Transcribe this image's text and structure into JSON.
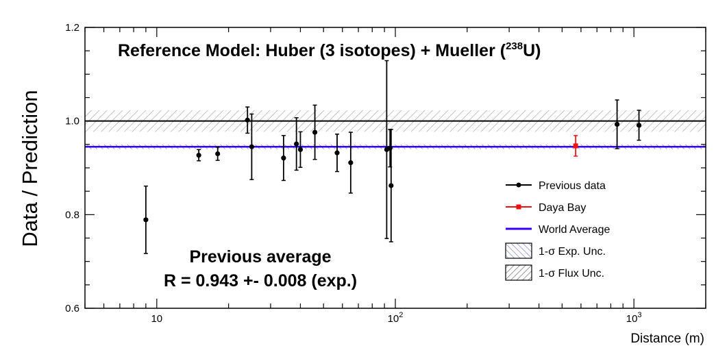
{
  "chart_data": {
    "type": "scatter",
    "title": "Reference Model: Huber (3 isotopes) + Mueller (",
    "title_superscript": "238",
    "title_suffix": "U)",
    "xlabel": "Distance (m)",
    "ylabel": "Data / Prediction",
    "x_scale": "log",
    "xlim": [
      5,
      2000
    ],
    "ylim": [
      0.6,
      1.2
    ],
    "y_ticks": [
      "0.6",
      "0.8",
      "1.0",
      "1.2"
    ],
    "x_ticks": [
      {
        "value": 10,
        "base": "10",
        "exp": ""
      },
      {
        "value": 100,
        "base": "10",
        "exp": "2"
      },
      {
        "value": 1000,
        "base": "10",
        "exp": "3"
      }
    ],
    "grid": false,
    "legend_position": "bottom-right",
    "reference_line": {
      "y": 1.0,
      "color": "#000000"
    },
    "world_average": {
      "y": 0.945,
      "color": "#3300ff"
    },
    "flux_band": {
      "ymin": 0.977,
      "ymax": 1.023
    },
    "exp_band": {
      "ymin": 0.94,
      "ymax": 0.95
    },
    "series": [
      {
        "name": "Previous data",
        "color": "#000000",
        "points": [
          {
            "x": 9,
            "y": 0.789,
            "err": 0.072
          },
          {
            "x": 15,
            "y": 0.927,
            "err": 0.012
          },
          {
            "x": 18,
            "y": 0.93,
            "err": 0.014
          },
          {
            "x": 24,
            "y": 1.002,
            "err": 0.028
          },
          {
            "x": 25,
            "y": 0.945,
            "err": 0.07
          },
          {
            "x": 34,
            "y": 0.921,
            "err": 0.048
          },
          {
            "x": 38.5,
            "y": 0.951,
            "err": 0.056
          },
          {
            "x": 40,
            "y": 0.939,
            "err": 0.038
          },
          {
            "x": 46,
            "y": 0.976,
            "err": 0.058
          },
          {
            "x": 57,
            "y": 0.932,
            "err": 0.04
          },
          {
            "x": 65,
            "y": 0.911,
            "err": 0.065
          },
          {
            "x": 92,
            "y": 0.939,
            "err": 0.19
          },
          {
            "x": 95,
            "y": 0.942,
            "err": 0.04
          },
          {
            "x": 96,
            "y": 0.862,
            "err": 0.12
          },
          {
            "x": 850,
            "y": 0.993,
            "err": 0.052
          },
          {
            "x": 1050,
            "y": 0.991,
            "err": 0.032
          }
        ]
      },
      {
        "name": "Daya Bay",
        "color": "#ee1111",
        "points": [
          {
            "x": 570,
            "y": 0.947,
            "err": 0.022
          }
        ]
      }
    ],
    "legend": [
      {
        "label": "Previous data",
        "kind": "marker",
        "color": "#000000"
      },
      {
        "label": "Daya Bay",
        "kind": "marker",
        "color": "#ee1111"
      },
      {
        "label": "World Average",
        "kind": "line",
        "color": "#3300ff"
      },
      {
        "label": "1-σ Exp. Unc.",
        "kind": "hatch",
        "color": "#6666cc"
      },
      {
        "label": "1-σ Flux Unc.",
        "kind": "hatch",
        "color": "#555555"
      }
    ],
    "annotation": {
      "line1": "Previous average",
      "line2": "R = 0.943 +- 0.008 (exp.)"
    }
  }
}
